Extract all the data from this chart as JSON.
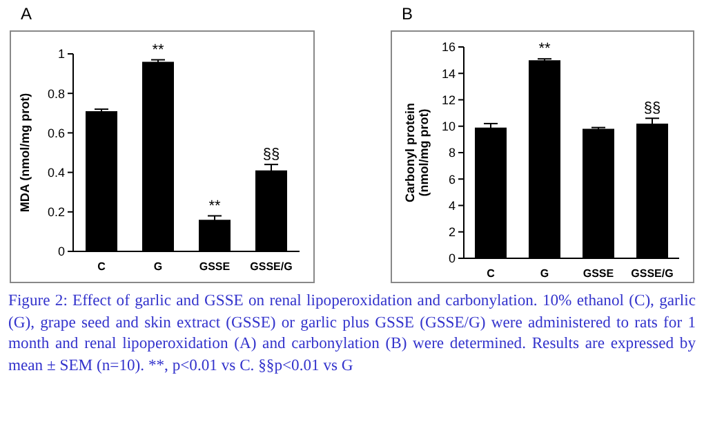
{
  "chart_data": [
    {
      "type": "bar",
      "title": "A",
      "ylabel": "MDA (nmol/mg prot)",
      "categories": [
        "C",
        "G",
        "GSSE",
        "GSSE/G"
      ],
      "values": [
        0.71,
        0.96,
        0.16,
        0.41
      ],
      "errors": [
        0.01,
        0.01,
        0.02,
        0.03
      ],
      "value_labels": [
        null,
        "**",
        "**",
        "§§"
      ],
      "color": "#000000",
      "ylim": [
        0,
        1
      ],
      "yticks": [
        0,
        0.2,
        0.4,
        0.6,
        0.8,
        1
      ],
      "annotations": [
        "Figure 2: Effect of garlic and GSSE on renal lipoperoxidation and carbonylation. 10% ethanol (C), garlic (G), grape seed and skin extract (GSSE) or garlic plus GSSE (GSSE/G) were administered to rats for 1 month and renal lipoperoxidation (A) and carbonylation (B) were determined. Results are expressed by mean ± SEM (n=10). **, p<0.01 vs C. §§p<0.01 vs G"
      ]
    },
    {
      "type": "bar",
      "title": "B",
      "ylabel": "Carbonyl protein\n(nmol/mg prot)",
      "categories": [
        "C",
        "G",
        "GSSE",
        "GSSE/G"
      ],
      "values": [
        9.9,
        15,
        9.8,
        10.2
      ],
      "errors": [
        0.3,
        0.1,
        0.1,
        0.4
      ],
      "value_labels": [
        null,
        "**",
        null,
        "§§"
      ],
      "color": "#000000",
      "ylim": [
        0,
        16
      ],
      "yticks": [
        0,
        2,
        4,
        6,
        8,
        10,
        12,
        14,
        16
      ]
    }
  ]
}
